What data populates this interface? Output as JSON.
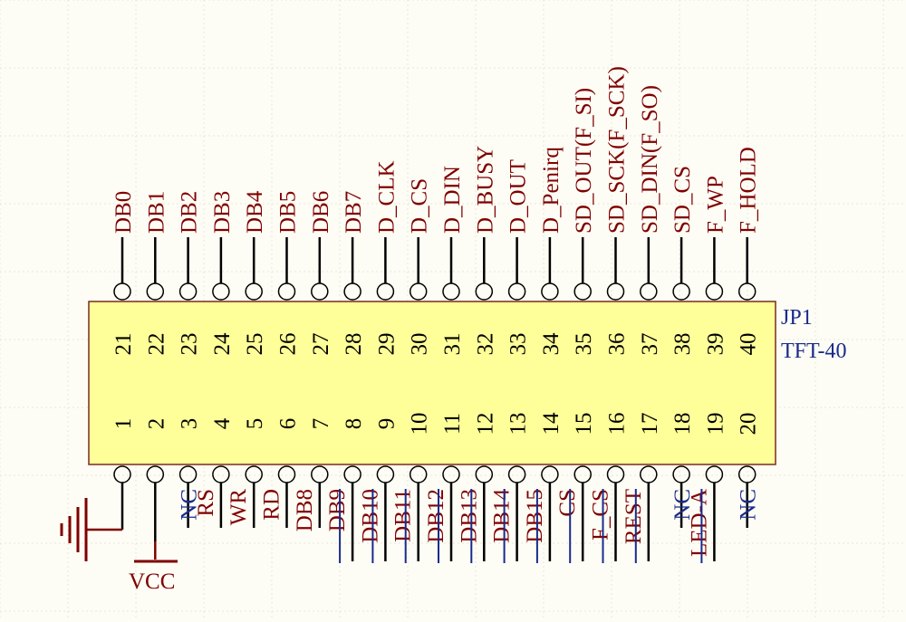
{
  "component": {
    "designator": "JP1",
    "value": "TFT-40"
  },
  "top_pins": [
    {
      "number": "21",
      "net": "DB0"
    },
    {
      "number": "22",
      "net": "DB1"
    },
    {
      "number": "23",
      "net": "DB2"
    },
    {
      "number": "24",
      "net": "DB3"
    },
    {
      "number": "25",
      "net": "DB4"
    },
    {
      "number": "26",
      "net": "DB5"
    },
    {
      "number": "27",
      "net": "DB6"
    },
    {
      "number": "28",
      "net": "DB7"
    },
    {
      "number": "29",
      "net": "D_CLK"
    },
    {
      "number": "30",
      "net": "D_CS"
    },
    {
      "number": "31",
      "net": "D_DIN"
    },
    {
      "number": "32",
      "net": "D_BUSY"
    },
    {
      "number": "33",
      "net": "D_OUT"
    },
    {
      "number": "34",
      "net": "D_Penirq"
    },
    {
      "number": "35",
      "net": "SD_OUT(F_SI)"
    },
    {
      "number": "36",
      "net": "SD_SCK(F_SCK)"
    },
    {
      "number": "37",
      "net": "SD_DIN(F_SO)"
    },
    {
      "number": "38",
      "net": "SD_CS"
    },
    {
      "number": "39",
      "net": "F_WP"
    },
    {
      "number": "40",
      "net": "F_HOLD"
    }
  ],
  "bottom_pins": [
    {
      "number": "1",
      "net": "",
      "kind": "gnd"
    },
    {
      "number": "2",
      "net": "VCC",
      "kind": "vcc"
    },
    {
      "number": "3",
      "net": "NC",
      "kind": "nc"
    },
    {
      "number": "4",
      "net": "RS",
      "kind": "net"
    },
    {
      "number": "5",
      "net": "WR",
      "kind": "net"
    },
    {
      "number": "6",
      "net": "RD",
      "kind": "net"
    },
    {
      "number": "7",
      "net": "DB8",
      "kind": "net"
    },
    {
      "number": "8",
      "net": "DB9",
      "kind": "net"
    },
    {
      "number": "9",
      "net": "DB10",
      "kind": "net"
    },
    {
      "number": "10",
      "net": "DB11",
      "kind": "net"
    },
    {
      "number": "11",
      "net": "DB12",
      "kind": "net"
    },
    {
      "number": "12",
      "net": "DB13",
      "kind": "net"
    },
    {
      "number": "13",
      "net": "DB14",
      "kind": "net"
    },
    {
      "number": "14",
      "net": "DB15",
      "kind": "net"
    },
    {
      "number": "15",
      "net": "CS",
      "kind": "net"
    },
    {
      "number": "16",
      "net": "F_CS",
      "kind": "net"
    },
    {
      "number": "17",
      "net": "REST",
      "kind": "net"
    },
    {
      "number": "18",
      "net": "NC",
      "kind": "nc"
    },
    {
      "number": "19",
      "net": "LED-A",
      "kind": "net"
    },
    {
      "number": "20",
      "net": "NC",
      "kind": "nc"
    }
  ],
  "colors": {
    "background": "#fdfdf5",
    "grid": "#e8e8dc",
    "body_fill": "#ffff99",
    "body_stroke": "#7a2a1a",
    "wire": "#000000",
    "pin_number": "#000000",
    "net_label": "#800000",
    "nc_label": "#1a2a8c",
    "designator": "#1a2a8c",
    "power": "#800000",
    "overline": "#1a2a8c"
  }
}
